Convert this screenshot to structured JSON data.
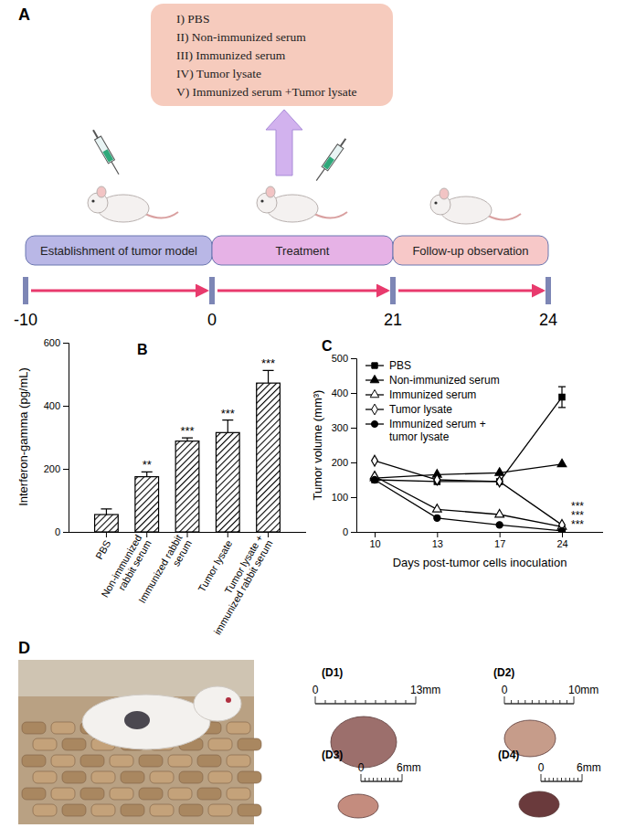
{
  "panel_a": {
    "label": "A",
    "treatments": [
      "I) PBS",
      "II) Non-immunized serum",
      "III) Immunized serum",
      "IV) Tumor lysate",
      "V) Immunized serum +Tumor lysate"
    ],
    "phases": [
      "Establishment of tumor model",
      "Treatment",
      "Follow-up observation"
    ],
    "timeline": [
      -10,
      0,
      21,
      24
    ]
  },
  "chart_data": [
    {
      "panel": "B",
      "type": "bar",
      "y_label": "Interferon-gamma (pg/mL)",
      "categories": [
        "PBS",
        "Non-immunized\nrabbit serum",
        "Immunized rabbit\nserum",
        "Tumor lysate",
        "Tumor lysate +\nimmunized rabbit serum"
      ],
      "values": [
        55,
        175,
        288,
        315,
        472
      ],
      "errors": [
        18,
        15,
        10,
        40,
        40
      ],
      "significance": [
        null,
        "**",
        "***",
        "***",
        "***"
      ],
      "color": "#000000",
      "ylim": [
        0,
        600
      ],
      "yticks": [
        0,
        200,
        400,
        600
      ]
    },
    {
      "panel": "C",
      "type": "line",
      "x_label": "Days post-tumor cells inoculation",
      "y_label": "Tumor volume (mm³)",
      "categories": [
        "10",
        "13",
        "17",
        "24"
      ],
      "ylim": [
        0,
        500
      ],
      "yticks": [
        0,
        100,
        200,
        300,
        400,
        500
      ],
      "legend": "upper left",
      "series": [
        {
          "name": "PBS",
          "color": "#000000",
          "marker": "square",
          "values": [
            150,
            145,
            145,
            388
          ],
          "errors": [
            null,
            null,
            null,
            30
          ],
          "significance": null
        },
        {
          "name": "Non-immunized serum",
          "color": "#000000",
          "marker": "triangle",
          "values": [
            155,
            165,
            170,
            195
          ],
          "significance": null
        },
        {
          "name": "Immunized serum",
          "color": "#000000",
          "marker": "triangle-open",
          "values": [
            160,
            65,
            50,
            15
          ],
          "significance": "***"
        },
        {
          "name": "Tumor lysate",
          "color": "#000000",
          "marker": "diamond-open",
          "values": [
            205,
            150,
            145,
            20
          ],
          "significance": "***"
        },
        {
          "name": "Immunized serum +\ntumor lysate",
          "color": "#000000",
          "marker": "circle",
          "values": [
            150,
            40,
            20,
            3
          ],
          "significance": "***"
        }
      ]
    }
  ],
  "panel_d": {
    "label": "D",
    "images": [
      {
        "label": "(D1)",
        "scale_start": "0",
        "scale_end": "13mm"
      },
      {
        "label": "(D2)",
        "scale_start": "0",
        "scale_end": "10mm"
      },
      {
        "label": "(D3)",
        "scale_start": "0",
        "scale_end": "6mm"
      },
      {
        "label": "(D4)",
        "scale_start": "0",
        "scale_end": "6mm"
      }
    ]
  }
}
